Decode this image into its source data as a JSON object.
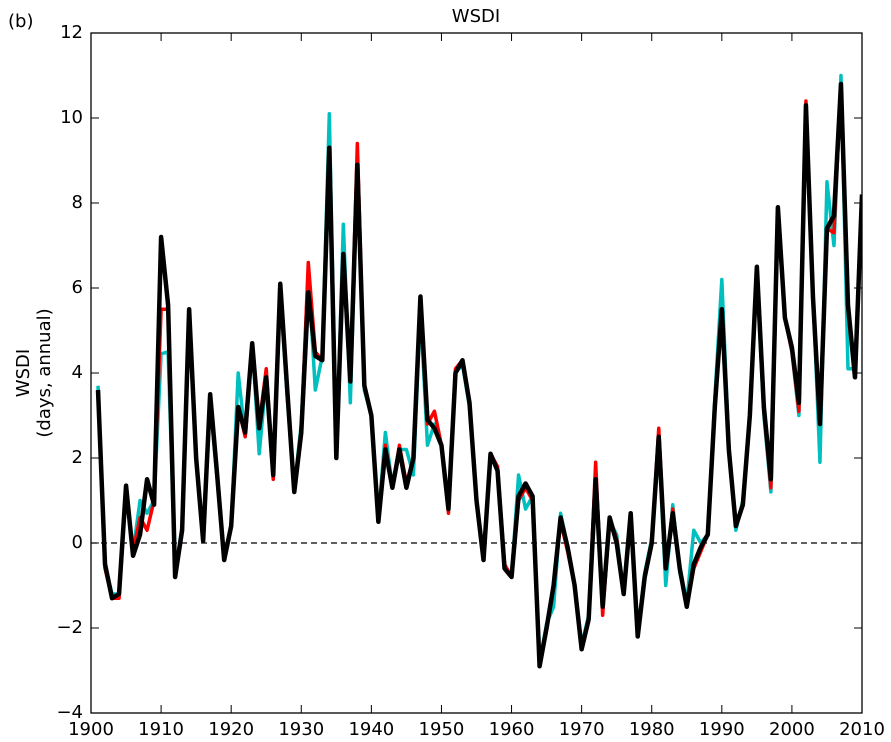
{
  "chart_data": {
    "type": "line",
    "title": "WSDI",
    "panel_label": "(b)",
    "ylabel_lines": [
      "WSDI",
      "(days, annual)"
    ],
    "reference_line": 0,
    "x": [
      1901,
      1902,
      1903,
      1904,
      1905,
      1906,
      1907,
      1908,
      1909,
      1910,
      1911,
      1912,
      1913,
      1914,
      1915,
      1916,
      1917,
      1918,
      1919,
      1920,
      1921,
      1922,
      1923,
      1924,
      1925,
      1926,
      1927,
      1928,
      1929,
      1930,
      1931,
      1932,
      1933,
      1934,
      1935,
      1936,
      1937,
      1938,
      1939,
      1940,
      1941,
      1942,
      1943,
      1944,
      1945,
      1946,
      1947,
      1948,
      1949,
      1950,
      1951,
      1952,
      1953,
      1954,
      1955,
      1956,
      1957,
      1958,
      1959,
      1960,
      1961,
      1962,
      1963,
      1964,
      1965,
      1966,
      1967,
      1968,
      1969,
      1970,
      1971,
      1972,
      1973,
      1974,
      1975,
      1976,
      1977,
      1978,
      1979,
      1980,
      1981,
      1982,
      1983,
      1984,
      1985,
      1986,
      1987,
      1988,
      1989,
      1990,
      1991,
      1992,
      1993,
      1994,
      1995,
      1996,
      1997,
      1998,
      1999,
      2000,
      2001,
      2002,
      2003,
      2004,
      2005,
      2006,
      2007,
      2008,
      2009,
      2010
    ],
    "series": [
      {
        "color": "#00bfbf",
        "width": 3.5,
        "values": [
          3.7,
          -0.5,
          -1.2,
          -1.2,
          1.3,
          -0.2,
          1.0,
          0.7,
          1.0,
          4.45,
          4.5,
          -0.7,
          0.4,
          5.3,
          2.0,
          0.1,
          3.3,
          1.5,
          -0.3,
          0.4,
          4.0,
          2.5,
          4.7,
          2.1,
          3.9,
          1.5,
          5.9,
          3.4,
          1.3,
          2.8,
          6.4,
          3.6,
          4.4,
          10.1,
          2.0,
          7.5,
          3.3,
          8.8,
          3.6,
          3.0,
          0.6,
          2.6,
          1.3,
          2.2,
          2.2,
          1.6,
          5.5,
          2.3,
          2.8,
          2.3,
          0.8,
          4.0,
          4.2,
          3.2,
          1.0,
          -0.3,
          2.0,
          1.8,
          -0.6,
          -0.8,
          1.6,
          0.8,
          1.1,
          -2.8,
          -1.9,
          -1.5,
          0.7,
          -0.1,
          -1.0,
          -2.4,
          -1.7,
          1.7,
          -1.4,
          0.5,
          0.2,
          -1.2,
          0.7,
          -2.1,
          -0.7,
          0.1,
          2.3,
          -1.0,
          0.9,
          -0.7,
          -1.4,
          0.3,
          0.0,
          0.2,
          3.4,
          6.2,
          2.3,
          0.3,
          1.0,
          3.0,
          6.3,
          3.0,
          1.2,
          7.7,
          5.3,
          4.5,
          3.0,
          10.3,
          5.9,
          1.9,
          8.5,
          7.0,
          11.0,
          4.1,
          4.1,
          8.1
        ]
      },
      {
        "color": "#ff0000",
        "width": 3.5,
        "values": [
          3.6,
          -0.6,
          -1.3,
          -1.3,
          1.3,
          -0.2,
          0.6,
          0.3,
          1.0,
          5.5,
          5.5,
          -0.8,
          0.3,
          5.3,
          2.0,
          0.1,
          3.4,
          1.6,
          -0.4,
          0.4,
          3.2,
          2.5,
          4.6,
          2.8,
          4.1,
          1.5,
          6.0,
          3.6,
          1.2,
          2.6,
          6.6,
          4.5,
          4.3,
          9.2,
          2.0,
          6.7,
          3.8,
          9.4,
          3.7,
          3.0,
          0.5,
          2.3,
          1.3,
          2.3,
          1.4,
          2.0,
          5.7,
          2.8,
          3.1,
          2.3,
          0.7,
          4.1,
          4.3,
          3.3,
          1.0,
          -0.4,
          2.1,
          1.8,
          -0.5,
          -0.8,
          1.0,
          1.3,
          1.0,
          -2.9,
          -2.0,
          -1.0,
          0.5,
          -0.2,
          -1.0,
          -2.5,
          -1.8,
          1.9,
          -1.7,
          0.6,
          0.1,
          -1.2,
          0.7,
          -2.2,
          -0.8,
          0.0,
          2.7,
          -0.6,
          0.8,
          -0.6,
          -1.5,
          -0.6,
          -0.2,
          0.2,
          3.2,
          5.4,
          2.2,
          0.4,
          0.9,
          3.0,
          6.5,
          3.1,
          1.3,
          7.8,
          5.3,
          4.5,
          3.1,
          10.4,
          5.8,
          2.9,
          7.4,
          7.3,
          10.8,
          5.6,
          3.9,
          8.2
        ]
      },
      {
        "color": "#000000",
        "width": 4.5,
        "values": [
          3.6,
          -0.5,
          -1.3,
          -1.2,
          1.35,
          -0.3,
          0.2,
          1.5,
          0.9,
          7.2,
          5.6,
          -0.8,
          0.3,
          5.5,
          2.0,
          0.05,
          3.5,
          1.6,
          -0.4,
          0.4,
          3.2,
          2.6,
          4.7,
          2.7,
          3.9,
          1.6,
          6.1,
          3.6,
          1.2,
          2.6,
          5.9,
          4.4,
          4.3,
          9.3,
          2.0,
          6.8,
          3.8,
          8.9,
          3.7,
          3.0,
          0.5,
          2.2,
          1.3,
          2.2,
          1.3,
          2.0,
          5.8,
          2.9,
          2.7,
          2.3,
          0.8,
          4.0,
          4.3,
          3.3,
          1.0,
          -0.4,
          2.1,
          1.7,
          -0.6,
          -0.8,
          1.1,
          1.4,
          1.1,
          -2.9,
          -2.0,
          -1.0,
          0.6,
          -0.1,
          -1.0,
          -2.5,
          -1.8,
          1.5,
          -1.5,
          0.6,
          0.0,
          -1.2,
          0.7,
          -2.2,
          -0.8,
          0.0,
          2.5,
          -0.6,
          0.7,
          -0.6,
          -1.5,
          -0.5,
          -0.1,
          0.2,
          3.2,
          5.5,
          2.2,
          0.4,
          0.9,
          3.0,
          6.5,
          3.2,
          1.5,
          7.9,
          5.3,
          4.6,
          3.3,
          10.3,
          5.8,
          2.8,
          7.4,
          7.7,
          10.8,
          5.6,
          3.9,
          8.2
        ]
      }
    ],
    "xlim": [
      1900,
      2010
    ],
    "xticks": [
      1900,
      1910,
      1920,
      1930,
      1940,
      1950,
      1960,
      1970,
      1980,
      1990,
      2000,
      2010
    ],
    "ylim": [
      -4,
      12
    ],
    "yticks": [
      {
        "value": -4,
        "label": "−4"
      },
      {
        "value": -2,
        "label": "−2"
      },
      0,
      2,
      4,
      6,
      8,
      10,
      12
    ]
  }
}
